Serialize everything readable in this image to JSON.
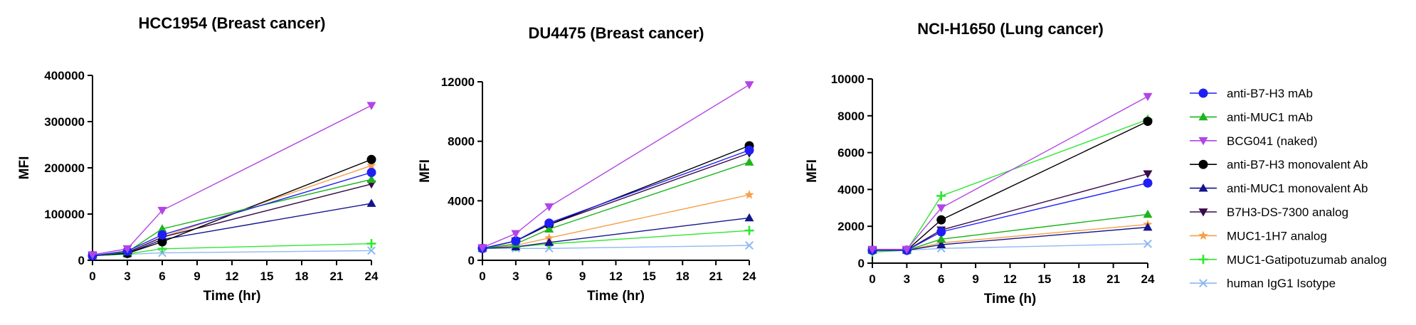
{
  "chart_data": [
    {
      "type": "line",
      "title": "HCC1954 (Breast cancer)",
      "xlabel": "Time (hr)",
      "ylabel": "MFI",
      "xlim": [
        0,
        24
      ],
      "ylim": [
        0,
        400000
      ],
      "xticks": [
        0,
        3,
        6,
        9,
        12,
        15,
        18,
        21,
        24
      ],
      "yticks": [
        0,
        100000,
        200000,
        300000,
        400000
      ],
      "x": [
        0,
        3,
        6,
        24
      ],
      "series": [
        {
          "name": "anti-B7-H3 mAb",
          "values": [
            10000,
            20000,
            55000,
            190000
          ]
        },
        {
          "name": "anti-MUC1 mAb",
          "values": [
            10000,
            18000,
            68000,
            175000
          ]
        },
        {
          "name": "BCG041 (naked)",
          "values": [
            12000,
            25000,
            108000,
            335000
          ]
        },
        {
          "name": "anti-B7-H3 monovalent Ab",
          "values": [
            10000,
            15000,
            40000,
            218000
          ]
        },
        {
          "name": "anti-MUC1 monovalent Ab",
          "values": [
            10000,
            15000,
            45000,
            123000
          ]
        },
        {
          "name": "B7H3-DS-7300 analog",
          "values": [
            10000,
            17000,
            50000,
            165000
          ]
        },
        {
          "name": "MUC1-1H7 analog",
          "values": [
            10000,
            16000,
            50000,
            205000
          ]
        },
        {
          "name": "MUC1-Gatipotuzumab analog",
          "values": [
            10000,
            14000,
            25000,
            36000
          ]
        },
        {
          "name": "human IgG1 Isotype",
          "values": [
            10000,
            13000,
            16000,
            21000
          ]
        }
      ]
    },
    {
      "type": "line",
      "title": "DU4475 (Breast cancer)",
      "xlabel": "Time (hr)",
      "ylabel": "MFI",
      "xlim": [
        0,
        24
      ],
      "ylim": [
        0,
        12000
      ],
      "xticks": [
        0,
        3,
        6,
        9,
        12,
        15,
        18,
        21,
        24
      ],
      "yticks": [
        0,
        4000,
        8000,
        12000
      ],
      "x": [
        0,
        3,
        6,
        24
      ],
      "series": [
        {
          "name": "anti-B7-H3 mAb",
          "values": [
            800,
            1300,
            2500,
            7400
          ]
        },
        {
          "name": "anti-MUC1 mAb",
          "values": [
            800,
            1100,
            2100,
            6600
          ]
        },
        {
          "name": "BCG041 (naked)",
          "values": [
            850,
            1800,
            3600,
            11800
          ]
        },
        {
          "name": "anti-B7-H3 monovalent Ab",
          "values": [
            800,
            1300,
            2400,
            7700
          ]
        },
        {
          "name": "anti-MUC1 monovalent Ab",
          "values": [
            800,
            900,
            1200,
            2850
          ]
        },
        {
          "name": "B7H3-DS-7300 analog",
          "values": [
            800,
            1300,
            2400,
            7200
          ]
        },
        {
          "name": "MUC1-1H7 analog",
          "values": [
            800,
            1000,
            1500,
            4400
          ]
        },
        {
          "name": "MUC1-Gatipotuzumab analog",
          "values": [
            800,
            900,
            1100,
            2000
          ]
        },
        {
          "name": "human IgG1 Isotype",
          "values": [
            800,
            800,
            800,
            1000
          ]
        }
      ]
    },
    {
      "type": "line",
      "title": "NCI-H1650 (Lung cancer)",
      "xlabel": "Time (h)",
      "ylabel": "MFI",
      "xlim": [
        0,
        24
      ],
      "ylim": [
        0,
        10000
      ],
      "xticks": [
        0,
        3,
        6,
        9,
        12,
        15,
        18,
        21,
        24
      ],
      "yticks": [
        0,
        2000,
        4000,
        6000,
        8000,
        10000
      ],
      "x": [
        0,
        3,
        6,
        24
      ],
      "series": [
        {
          "name": "anti-B7-H3 mAb",
          "values": [
            700,
            700,
            1700,
            4350
          ]
        },
        {
          "name": "anti-MUC1 mAb",
          "values": [
            700,
            700,
            1300,
            2650
          ]
        },
        {
          "name": "BCG041 (naked)",
          "values": [
            750,
            750,
            3000,
            9050
          ]
        },
        {
          "name": "anti-B7-H3 monovalent Ab",
          "values": [
            700,
            700,
            2350,
            7700
          ]
        },
        {
          "name": "anti-MUC1 monovalent Ab",
          "values": [
            700,
            700,
            1000,
            1950
          ]
        },
        {
          "name": "B7H3-DS-7300 analog",
          "values": [
            700,
            700,
            1800,
            4850
          ]
        },
        {
          "name": "MUC1-1H7 analog",
          "values": [
            700,
            700,
            1100,
            2100
          ]
        },
        {
          "name": "MUC1-Gatipotuzumab analog",
          "values": [
            600,
            700,
            3650,
            7800
          ]
        },
        {
          "name": "human IgG1 Isotype",
          "values": [
            700,
            700,
            800,
            1050
          ]
        }
      ]
    }
  ],
  "legend": {
    "placement": "right",
    "entries": [
      {
        "label": "anti-B7-H3 mAb",
        "color": "#1f1ff5",
        "marker": "circle"
      },
      {
        "label": "anti-MUC1 mAb",
        "color": "#1cb51c",
        "marker": "triangle-up"
      },
      {
        "label": "BCG041 (naked)",
        "color": "#b244e6",
        "marker": "triangle-down"
      },
      {
        "label": "anti-B7-H3 monovalent Ab",
        "color": "#000000",
        "marker": "circle"
      },
      {
        "label": "anti-MUC1 monovalent Ab",
        "color": "#14148c",
        "marker": "triangle-up"
      },
      {
        "label": "B7H3-DS-7300 analog",
        "color": "#3a0a4a",
        "marker": "triangle-down"
      },
      {
        "label": "MUC1-1H7 analog",
        "color": "#f5a04c",
        "marker": "star"
      },
      {
        "label": "MUC1-Gatipotuzumab analog",
        "color": "#2ee82e",
        "marker": "plus"
      },
      {
        "label": "human IgG1 Isotype",
        "color": "#8fb8f2",
        "marker": "cross"
      }
    ]
  }
}
